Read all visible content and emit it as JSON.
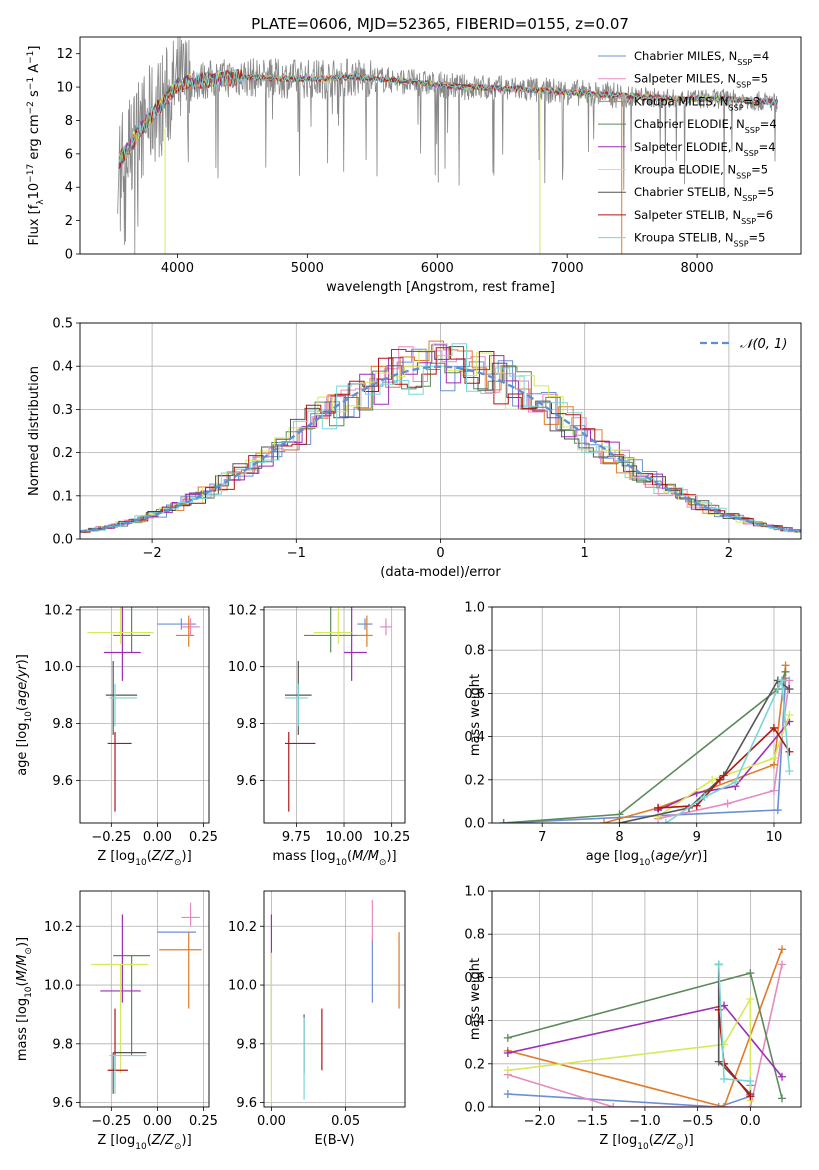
{
  "figure": {
    "title": "PLATE=0606, MJD=52365, FIBERID=0155, z=0.07"
  },
  "model_colors": {
    "Chabrier MILES": "#6b8fd6",
    "Salpeter MILES": "#e58ac0",
    "Kroupa MILES": "#e07b28",
    "Chabrier ELODIE": "#5c8a5c",
    "Salpeter ELODIE": "#9a2fb5",
    "Kroupa ELODIE": "#d8e85a",
    "Chabrier STELIB": "#555555",
    "Salpeter STELIB": "#b01515",
    "Kroupa STELIB": "#79d6d8",
    "data": "#888888",
    "normal": "#5b8fd6"
  },
  "chart_data": [
    {
      "type": "line",
      "xlabel": "wavelength [Angstrom, rest frame]",
      "ylabel": "Flux [f_λ 10^-17 erg cm^-2 s^-1 A^-1]",
      "xlim": [
        3250,
        8800
      ],
      "ylim": [
        0,
        13
      ],
      "xticks": [
        4000,
        5000,
        6000,
        7000,
        8000
      ],
      "yticks": [
        0,
        2,
        4,
        6,
        8,
        10,
        12
      ],
      "grid": false,
      "legend_position": "upper-right",
      "legend": [
        "Chabrier MILES, N_SSP=4",
        "Salpeter MILES, N_SSP=5",
        "Kroupa MILES, N_SSP=3",
        "Chabrier ELODIE, N_SSP=4",
        "Salpeter ELODIE, N_SSP=4",
        "Kroupa ELODIE, N_SSP=5",
        "Chabrier STELIB, N_SSP=5",
        "Salpeter STELIB, N_SSP=6",
        "Kroupa STELIB, N_SSP=5"
      ],
      "continuum": {
        "x": [
          3550,
          3600,
          3650,
          3700,
          3800,
          3900,
          4000,
          4100,
          4200,
          4300,
          4500,
          4800,
          5100,
          5400,
          5800,
          6200,
          6600,
          7000,
          7400,
          7800,
          8200,
          8600
        ],
        "y": [
          5.6,
          6.1,
          6.6,
          7.3,
          8.3,
          9.2,
          10.1,
          10.3,
          10.4,
          10.5,
          10.6,
          10.5,
          10.5,
          10.6,
          10.3,
          10.0,
          9.9,
          9.7,
          9.5,
          9.3,
          9.3,
          9.1
        ]
      }
    },
    {
      "type": "histogram",
      "xlabel": "(data-model)/error",
      "ylabel": "Normed distribution",
      "xlim": [
        -2.5,
        2.5
      ],
      "ylim": [
        0,
        0.5
      ],
      "xticks": [
        -2,
        -1,
        0,
        1,
        2
      ],
      "yticks": [
        0.0,
        0.1,
        0.2,
        0.3,
        0.4,
        0.5
      ],
      "xtick_labels": [
        "−2",
        "−1",
        "0",
        "1",
        "2"
      ],
      "grid": true,
      "legend_position": "upper-right",
      "legend": [
        "𝒩(0, 1)"
      ],
      "gaussian": {
        "mu": 0,
        "sigma": 1
      }
    },
    {
      "type": "scatter",
      "xlabel": "Z [log10(Z/Z☉)]",
      "ylabel": "age [log10(age/yr)]",
      "xlim": [
        -0.42,
        0.28
      ],
      "ylim": [
        9.45,
        10.21
      ],
      "xticks": [
        -0.25,
        0.0,
        0.25
      ],
      "xtick_labels": [
        "−0.25",
        "0.00",
        "0.25"
      ],
      "yticks": [
        9.6,
        9.8,
        10.0,
        10.2
      ],
      "grid": true,
      "points": [
        {
          "model": "Chabrier MILES",
          "x": 0.13,
          "y": 10.15,
          "ex": [
            0.13,
            0.08
          ],
          "ey": [
            0.02,
            0.02
          ]
        },
        {
          "model": "Salpeter MILES",
          "x": 0.18,
          "y": 10.14,
          "ex": [
            0.05,
            0.05
          ],
          "ey": [
            0.03,
            0.03
          ]
        },
        {
          "model": "Kroupa MILES",
          "x": 0.17,
          "y": 10.11,
          "ex": [
            0.07,
            0.03
          ],
          "ey": [
            0.04,
            0.07
          ]
        },
        {
          "model": "Chabrier ELODIE",
          "x": -0.14,
          "y": 10.11,
          "ex": [
            0.1,
            0.1
          ],
          "ey": [
            0.06,
            0.33
          ]
        },
        {
          "model": "Salpeter ELODIE",
          "x": -0.19,
          "y": 10.05,
          "ex": [
            0.1,
            0.1
          ],
          "ey": [
            0.1,
            0.25
          ]
        },
        {
          "model": "Kroupa ELODIE",
          "x": -0.2,
          "y": 10.12,
          "ex": [
            0.18,
            0.18
          ],
          "ey": [
            0.04,
            0.63
          ]
        },
        {
          "model": "Chabrier STELIB",
          "x": -0.24,
          "y": 9.9,
          "ex": [
            0.04,
            0.13
          ],
          "ey": [
            0.14,
            0.12
          ]
        },
        {
          "model": "Salpeter STELIB",
          "x": -0.23,
          "y": 9.73,
          "ex": [
            0.04,
            0.09
          ],
          "ey": [
            0.24,
            0.04
          ]
        },
        {
          "model": "Kroupa STELIB",
          "x": -0.23,
          "y": 9.89,
          "ex": [
            0.03,
            0.12
          ],
          "ey": [
            0.1,
            0.05
          ]
        }
      ]
    },
    {
      "type": "scatter",
      "xlabel": "mass [log10(M/M☉)]",
      "ylabel": "",
      "xlim": [
        9.58,
        10.32
      ],
      "ylim": [
        9.45,
        10.21
      ],
      "xticks": [
        9.75,
        10.0,
        10.25
      ],
      "xtick_labels": [
        "9.75",
        "10.00",
        "10.25"
      ],
      "yticks": [
        9.6,
        9.8,
        10.0,
        10.2
      ],
      "grid": true,
      "points": [
        {
          "model": "Chabrier MILES",
          "x": 10.11,
          "y": 10.15,
          "ex": [
            0.04,
            0.04
          ],
          "ey": [
            0.02,
            0.02
          ]
        },
        {
          "model": "Salpeter MILES",
          "x": 10.22,
          "y": 10.14,
          "ex": [
            0.03,
            0.03
          ],
          "ey": [
            0.03,
            0.03
          ]
        },
        {
          "model": "Kroupa MILES",
          "x": 10.12,
          "y": 10.11,
          "ex": [
            0.05,
            0.03
          ],
          "ey": [
            0.04,
            0.07
          ]
        },
        {
          "model": "Chabrier ELODIE",
          "x": 9.93,
          "y": 10.11,
          "ex": [
            0.14,
            0.14
          ],
          "ey": [
            0.06,
            0.33
          ]
        },
        {
          "model": "Salpeter ELODIE",
          "x": 10.04,
          "y": 10.05,
          "ex": [
            0.04,
            0.08
          ],
          "ey": [
            0.1,
            0.25
          ]
        },
        {
          "model": "Kroupa ELODIE",
          "x": 9.97,
          "y": 10.12,
          "ex": [
            0.13,
            0.07
          ],
          "ey": [
            0.04,
            0.63
          ]
        },
        {
          "model": "Chabrier STELIB",
          "x": 9.76,
          "y": 9.9,
          "ex": [
            0.07,
            0.07
          ],
          "ey": [
            0.14,
            0.12
          ]
        },
        {
          "model": "Salpeter STELIB",
          "x": 9.71,
          "y": 9.73,
          "ex": [
            0.02,
            0.14
          ],
          "ey": [
            0.24,
            0.04
          ]
        },
        {
          "model": "Kroupa STELIB",
          "x": 9.76,
          "y": 9.89,
          "ex": [
            0.07,
            0.05
          ],
          "ey": [
            0.1,
            0.05
          ]
        }
      ]
    },
    {
      "type": "line",
      "xlabel": "age [log10(age/yr)]",
      "ylabel": "mass weight",
      "xlim": [
        6.35,
        10.35
      ],
      "ylim": [
        0,
        1
      ],
      "xticks": [
        7,
        8,
        9,
        10
      ],
      "yticks": [
        0.0,
        0.2,
        0.4,
        0.6,
        0.8,
        1.0
      ],
      "grid": true,
      "series": [
        {
          "model": "Chabrier MILES",
          "x": [
            6.5,
            10.05,
            10.15
          ],
          "y": [
            0.0,
            0.06,
            0.67
          ]
        },
        {
          "model": "Salpeter MILES",
          "x": [
            8.5,
            9.4,
            10.0,
            10.2
          ],
          "y": [
            0.02,
            0.09,
            0.15,
            0.66
          ]
        },
        {
          "model": "Kroupa MILES",
          "x": [
            7.8,
            8.5,
            10.0,
            10.15
          ],
          "y": [
            0.0,
            0.07,
            0.27,
            0.73
          ]
        },
        {
          "model": "Chabrier ELODIE",
          "x": [
            6.5,
            8.0,
            10.05,
            10.15
          ],
          "y": [
            0.0,
            0.04,
            0.62,
            0.7
          ]
        },
        {
          "model": "Salpeter ELODIE",
          "x": [
            8.5,
            9.0,
            9.5,
            10.2
          ],
          "y": [
            0.06,
            0.14,
            0.17,
            0.47
          ]
        },
        {
          "model": "Kroupa ELODIE",
          "x": [
            8.5,
            9.2,
            10.0,
            10.2
          ],
          "y": [
            0.03,
            0.2,
            0.3,
            0.5
          ]
        },
        {
          "model": "Chabrier STELIB",
          "x": [
            8.0,
            8.9,
            9.35,
            10.05,
            10.2
          ],
          "y": [
            0.0,
            0.07,
            0.22,
            0.66,
            0.62
          ]
        },
        {
          "model": "Salpeter STELIB",
          "x": [
            8.5,
            9.0,
            9.3,
            10.0,
            10.2
          ],
          "y": [
            0.07,
            0.08,
            0.2,
            0.44,
            0.33
          ]
        },
        {
          "model": "Kroupa STELIB",
          "x": [
            8.6,
            9.1,
            9.5,
            10.1,
            10.2
          ],
          "y": [
            0.0,
            0.12,
            0.19,
            0.66,
            0.24
          ]
        }
      ]
    },
    {
      "type": "scatter",
      "xlabel": "Z [log10(Z/Z☉)]",
      "ylabel": "mass [log10(M/M☉)]",
      "xlim": [
        -0.42,
        0.28
      ],
      "ylim": [
        9.585,
        10.32
      ],
      "xticks": [
        -0.25,
        0.0,
        0.25
      ],
      "xtick_labels": [
        "−0.25",
        "0.00",
        "0.25"
      ],
      "yticks": [
        9.6,
        9.8,
        10.0,
        10.2
      ],
      "grid": true,
      "points": [
        {
          "model": "Chabrier MILES",
          "x": 0.13,
          "y": 10.18,
          "ex": [
            0.13,
            0.08
          ],
          "ey": [
            0.0,
            0.0
          ]
        },
        {
          "model": "Salpeter MILES",
          "x": 0.18,
          "y": 10.23,
          "ex": [
            0.05,
            0.05
          ],
          "ey": [
            0.03,
            0.05
          ]
        },
        {
          "model": "Kroupa MILES",
          "x": 0.17,
          "y": 10.12,
          "ex": [
            0.16,
            0.07
          ],
          "ey": [
            0.2,
            0.06
          ]
        },
        {
          "model": "Chabrier ELODIE",
          "x": -0.14,
          "y": 10.1,
          "ex": [
            0.1,
            0.1
          ],
          "ey": [
            0.34,
            0.0
          ]
        },
        {
          "model": "Salpeter ELODIE",
          "x": -0.19,
          "y": 9.98,
          "ex": [
            0.12,
            0.1
          ],
          "ey": [
            0.04,
            0.26
          ]
        },
        {
          "model": "Kroupa ELODIE",
          "x": -0.2,
          "y": 10.07,
          "ex": [
            0.16,
            0.15
          ],
          "ey": [
            0.37,
            0.0
          ]
        },
        {
          "model": "Chabrier STELIB",
          "x": -0.24,
          "y": 9.77,
          "ex": [
            0.0,
            0.18
          ],
          "ey": [
            0.14,
            0.0
          ]
        },
        {
          "model": "Salpeter STELIB",
          "x": -0.23,
          "y": 9.71,
          "ex": [
            0.04,
            0.07
          ],
          "ey": [
            0.0,
            0.21
          ]
        },
        {
          "model": "Kroupa STELIB",
          "x": -0.23,
          "y": 9.76,
          "ex": [
            0.03,
            0.17
          ],
          "ey": [
            0.13,
            0.0
          ]
        }
      ]
    },
    {
      "type": "scatter",
      "xlabel": "E(B-V)",
      "ylabel": "",
      "xlim": [
        -0.005,
        0.09
      ],
      "ylim": [
        9.585,
        10.32
      ],
      "xticks": [
        0.0,
        0.05
      ],
      "xtick_labels": [
        "0.00",
        "0.05"
      ],
      "yticks": [
        9.6,
        9.8,
        10.0,
        10.2
      ],
      "grid": true,
      "points": [
        {
          "model": "Chabrier MILES",
          "x": 0.068,
          "y": 10.1,
          "ex": [
            0,
            0
          ],
          "ey": [
            0.16,
            0.06
          ]
        },
        {
          "model": "Salpeter MILES",
          "x": 0.068,
          "y": 10.23,
          "ex": [
            0,
            0
          ],
          "ey": [
            0.08,
            0.06
          ]
        },
        {
          "model": "Kroupa MILES",
          "x": 0.086,
          "y": 10.05,
          "ex": [
            0,
            0
          ],
          "ey": [
            0.13,
            0.13
          ]
        },
        {
          "model": "Chabrier ELODIE",
          "x": 0.0,
          "y": 9.95,
          "ex": [
            0,
            0
          ],
          "ey": [
            0.15,
            0.15
          ]
        },
        {
          "model": "Salpeter ELODIE",
          "x": 0.0,
          "y": 10.16,
          "ex": [
            0,
            0
          ],
          "ey": [
            0.06,
            0.08
          ]
        },
        {
          "model": "Kroupa ELODIE",
          "x": 0.0,
          "y": 9.85,
          "ex": [
            0,
            0
          ],
          "ey": [
            0.25,
            0.26
          ]
        },
        {
          "model": "Chabrier STELIB",
          "x": 0.022,
          "y": 9.8,
          "ex": [
            0,
            0
          ],
          "ey": [
            0.1,
            0.1
          ]
        },
        {
          "model": "Salpeter STELIB",
          "x": 0.034,
          "y": 9.82,
          "ex": [
            0,
            0
          ],
          "ey": [
            0.11,
            0.1
          ]
        },
        {
          "model": "Kroupa STELIB",
          "x": 0.022,
          "y": 9.73,
          "ex": [
            0,
            0
          ],
          "ey": [
            0.12,
            0.16
          ]
        }
      ]
    },
    {
      "type": "line",
      "xlabel": "Z [log10(Z/Z☉)]",
      "ylabel": "mass weight",
      "xlim": [
        -2.45,
        0.48
      ],
      "ylim": [
        0,
        1
      ],
      "xticks": [
        -2.0,
        -1.5,
        -1.0,
        -0.5,
        0.0
      ],
      "xtick_labels": [
        "−2.0",
        "−1.5",
        "−1.0",
        "−0.5",
        "0.0"
      ],
      "yticks": [
        0.0,
        0.2,
        0.4,
        0.6,
        0.8,
        1.0
      ],
      "grid": true,
      "series": [
        {
          "model": "Chabrier MILES",
          "x": [
            -2.3,
            -0.3,
            0.0,
            0.0
          ],
          "y": [
            0.06,
            0.0,
            0.05,
            0.1
          ]
        },
        {
          "model": "Salpeter MILES",
          "x": [
            -2.3,
            -1.3,
            0.0,
            0.3
          ],
          "y": [
            0.15,
            0.0,
            0.0,
            0.66
          ]
        },
        {
          "model": "Kroupa MILES",
          "x": [
            -2.3,
            -0.25,
            0.3
          ],
          "y": [
            0.26,
            0.0,
            0.73
          ]
        },
        {
          "model": "Chabrier ELODIE",
          "x": [
            -2.3,
            0.0,
            0.3
          ],
          "y": [
            0.32,
            0.62,
            0.04
          ]
        },
        {
          "model": "Salpeter ELODIE",
          "x": [
            -2.3,
            -0.25,
            0.3
          ],
          "y": [
            0.25,
            0.47,
            0.14
          ]
        },
        {
          "model": "Kroupa ELODIE",
          "x": [
            -2.3,
            -0.25,
            0.0,
            0.0
          ],
          "y": [
            0.17,
            0.29,
            0.5,
            0.03
          ]
        },
        {
          "model": "Chabrier STELIB",
          "x": [
            -0.3,
            -0.3,
            0.0
          ],
          "y": [
            0.66,
            0.21,
            0.06
          ]
        },
        {
          "model": "Salpeter STELIB",
          "x": [
            -0.3,
            -0.25,
            0.0
          ],
          "y": [
            0.45,
            0.2,
            0.05
          ]
        },
        {
          "model": "Kroupa STELIB",
          "x": [
            -0.3,
            -0.25,
            0.0
          ],
          "y": [
            0.66,
            0.13,
            0.12
          ]
        }
      ]
    }
  ]
}
